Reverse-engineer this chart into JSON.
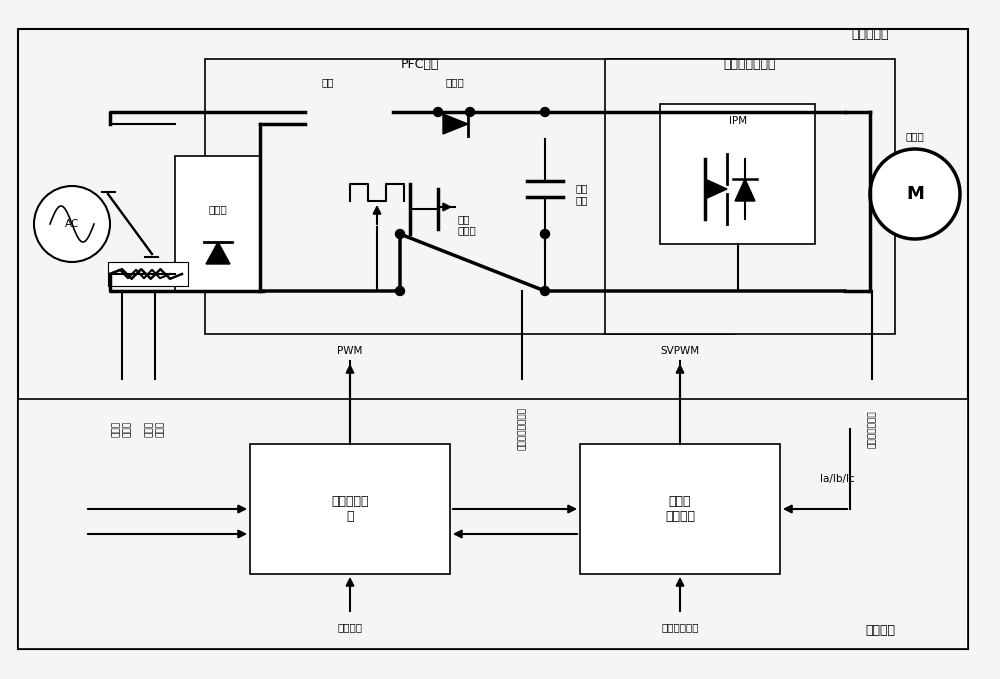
{
  "bg_color": "#f5f5f5",
  "line_color": "#000000",
  "box_color": "#ffffff",
  "title_bipin": "变频控制器",
  "title_pfc": "PFC电路",
  "title_compressor_drive": "压缩机驱动电路",
  "title_control_unit": "控制单元",
  "label_ac": "AC",
  "label_rectifier": "整流桥",
  "label_inductor": "电感",
  "label_diode": "二极管",
  "label_switch": "功率\n开关管",
  "label_cap": "电解\n电容",
  "label_ipm": "IPM",
  "label_motor": "M",
  "label_compressor": "压缩机",
  "label_pfc_correction": "功率因数校\n正",
  "label_freq_control": "压缩机\n频率控制",
  "label_pwm": "PWM",
  "label_svpwm": "SVPWM",
  "label_set_voltage": "设定电压",
  "label_target_freq": "目标运行频率",
  "label_ia_ib_ic": "Ia/Ib/Ic",
  "label_dc_voltage": "直流母线电压采集",
  "label_comp_current": "压缩机电流采集",
  "label_voltage_current1": "输入电\n流采集",
  "label_voltage_current2": "输入电\n压采集"
}
